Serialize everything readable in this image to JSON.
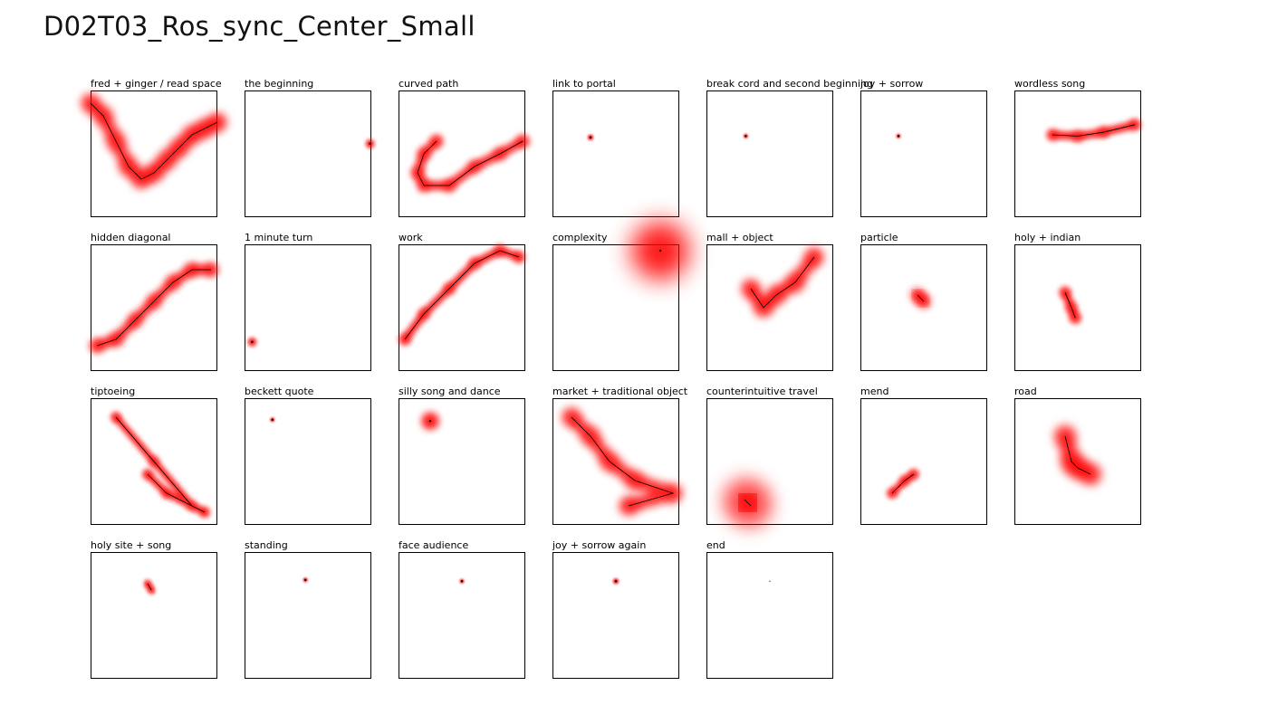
{
  "title": "D02T03_Ros_sync_Center_Small",
  "chart_data": {
    "type": "scatter",
    "panels": [
      {
        "label": "fred + ginger / read space",
        "path": [
          [
            0.0,
            0.1
          ],
          [
            0.1,
            0.2
          ],
          [
            0.2,
            0.4
          ],
          [
            0.3,
            0.6
          ],
          [
            0.4,
            0.7
          ],
          [
            0.5,
            0.65
          ],
          [
            0.6,
            0.55
          ],
          [
            0.7,
            0.45
          ],
          [
            0.8,
            0.35
          ],
          [
            0.9,
            0.3
          ],
          [
            1.0,
            0.25
          ]
        ],
        "blur": 14
      },
      {
        "label": "the beginning",
        "path": [
          [
            0.99,
            0.42
          ]
        ],
        "blur": 6
      },
      {
        "label": "curved path",
        "path": [
          [
            0.3,
            0.4
          ],
          [
            0.2,
            0.5
          ],
          [
            0.15,
            0.65
          ],
          [
            0.2,
            0.75
          ],
          [
            0.4,
            0.75
          ],
          [
            0.6,
            0.6
          ],
          [
            0.8,
            0.5
          ],
          [
            0.98,
            0.4
          ]
        ],
        "blur": 10
      },
      {
        "label": "link to portal",
        "path": [
          [
            0.3,
            0.37
          ]
        ],
        "blur": 4
      },
      {
        "label": "break cord and second beginning",
        "path": [
          [
            0.31,
            0.36
          ]
        ],
        "blur": 3
      },
      {
        "label": "joy + sorrow",
        "path": [
          [
            0.3,
            0.36
          ]
        ],
        "blur": 3
      },
      {
        "label": "wordless song",
        "path": [
          [
            0.3,
            0.35
          ],
          [
            0.5,
            0.36
          ],
          [
            0.7,
            0.33
          ],
          [
            0.95,
            0.27
          ]
        ],
        "blur": 9
      },
      {
        "label": "hidden diagonal",
        "path": [
          [
            0.05,
            0.8
          ],
          [
            0.2,
            0.75
          ],
          [
            0.35,
            0.6
          ],
          [
            0.5,
            0.45
          ],
          [
            0.65,
            0.3
          ],
          [
            0.8,
            0.2
          ],
          [
            0.95,
            0.2
          ]
        ],
        "blur": 11
      },
      {
        "label": "1 minute turn",
        "path": [
          [
            0.06,
            0.77
          ]
        ],
        "blur": 6
      },
      {
        "label": "work",
        "path": [
          [
            0.05,
            0.75
          ],
          [
            0.2,
            0.55
          ],
          [
            0.4,
            0.35
          ],
          [
            0.6,
            0.15
          ],
          [
            0.8,
            0.05
          ],
          [
            0.95,
            0.1
          ]
        ],
        "blur": 9
      },
      {
        "label": "complexity",
        "path": [
          [
            0.85,
            0.05
          ]
        ],
        "blur": 40
      },
      {
        "label": "mall + object",
        "path": [
          [
            0.35,
            0.35
          ],
          [
            0.45,
            0.5
          ],
          [
            0.55,
            0.4
          ],
          [
            0.7,
            0.3
          ],
          [
            0.85,
            0.1
          ]
        ],
        "blur": 14
      },
      {
        "label": "particle",
        "path": [
          [
            0.45,
            0.4
          ],
          [
            0.5,
            0.45
          ]
        ],
        "blur": 11
      },
      {
        "label": "holy + indian",
        "path": [
          [
            0.4,
            0.38
          ],
          [
            0.45,
            0.5
          ],
          [
            0.48,
            0.58
          ]
        ],
        "blur": 9
      },
      {
        "label": "tiptoeing",
        "path": [
          [
            0.2,
            0.15
          ],
          [
            0.5,
            0.5
          ],
          [
            0.8,
            0.85
          ],
          [
            0.9,
            0.9
          ],
          [
            0.6,
            0.75
          ],
          [
            0.45,
            0.6
          ]
        ],
        "blur": 8
      },
      {
        "label": "beckett quote",
        "path": [
          [
            0.22,
            0.17
          ]
        ],
        "blur": 3
      },
      {
        "label": "silly song and dance",
        "path": [
          [
            0.25,
            0.18
          ]
        ],
        "blur": 12
      },
      {
        "label": "market + traditional object",
        "path": [
          [
            0.15,
            0.15
          ],
          [
            0.3,
            0.3
          ],
          [
            0.45,
            0.5
          ],
          [
            0.65,
            0.65
          ],
          [
            0.95,
            0.75
          ],
          [
            0.6,
            0.85
          ]
        ],
        "blur": 14
      },
      {
        "label": "counterintuitive travel",
        "path": [
          [
            0.3,
            0.8
          ],
          [
            0.35,
            0.85
          ]
        ],
        "blur": 30
      },
      {
        "label": "mend",
        "path": [
          [
            0.25,
            0.75
          ],
          [
            0.35,
            0.65
          ],
          [
            0.42,
            0.6
          ]
        ],
        "blur": 8
      },
      {
        "label": "road",
        "path": [
          [
            0.4,
            0.3
          ],
          [
            0.45,
            0.5
          ],
          [
            0.5,
            0.55
          ],
          [
            0.6,
            0.6
          ]
        ],
        "blur": 16
      },
      {
        "label": "holy site + song",
        "path": [
          [
            0.45,
            0.25
          ],
          [
            0.48,
            0.3
          ]
        ],
        "blur": 6
      },
      {
        "label": "standing",
        "path": [
          [
            0.48,
            0.22
          ]
        ],
        "blur": 3
      },
      {
        "label": "face audience",
        "path": [
          [
            0.5,
            0.23
          ]
        ],
        "blur": 3
      },
      {
        "label": "joy + sorrow again",
        "path": [
          [
            0.5,
            0.23
          ]
        ],
        "blur": 4
      },
      {
        "label": "end",
        "path": [
          [
            0.5,
            0.23
          ]
        ],
        "blur": 0
      }
    ],
    "colors": {
      "heat": "#ff0000",
      "trace": "#000000"
    }
  }
}
